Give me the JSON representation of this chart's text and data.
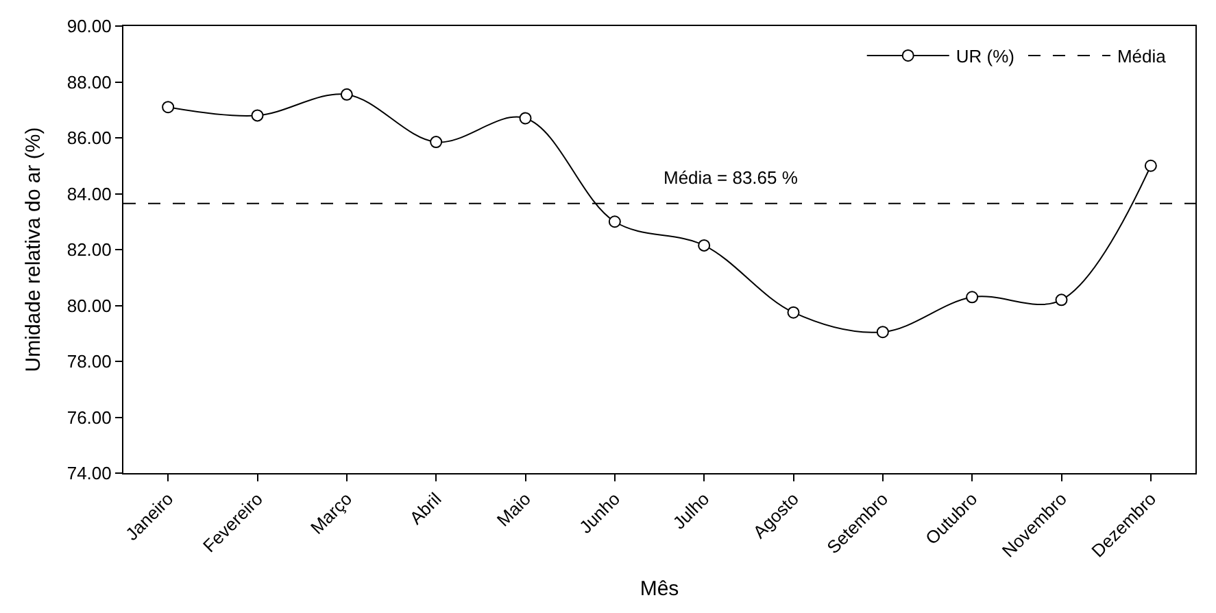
{
  "chart_data": {
    "type": "line",
    "xlabel": "Mês",
    "ylabel": "Umidade relativa do ar (%)",
    "categories": [
      "Janeiro",
      "Fevereiro",
      "Março",
      "Abril",
      "Maio",
      "Junho",
      "Julho",
      "Agosto",
      "Setembro",
      "Outubro",
      "Novembro",
      "Dezembro"
    ],
    "series": [
      {
        "name": "UR (%)",
        "color": "#000000",
        "values": [
          87.1,
          86.8,
          87.55,
          85.85,
          86.7,
          83.0,
          82.15,
          79.75,
          79.05,
          80.3,
          80.2,
          85.0
        ]
      }
    ],
    "ylim": [
      74,
      90
    ],
    "yticks": [
      {
        "value": 74,
        "label": "74.00"
      },
      {
        "value": 76,
        "label": "76.00"
      },
      {
        "value": 78,
        "label": "78.00"
      },
      {
        "value": 80,
        "label": "80.00"
      },
      {
        "value": 82,
        "label": "82.00"
      },
      {
        "value": 84,
        "label": "84.00"
      },
      {
        "value": 86,
        "label": "86.00"
      },
      {
        "value": 88,
        "label": "88.00"
      },
      {
        "value": 90,
        "label": "90.00"
      }
    ],
    "ref_lines": [
      {
        "axis": "y",
        "value": 83.65,
        "label": "Média",
        "color": "#000000",
        "line_style": "dashed"
      }
    ],
    "annotations": [
      "Média = 83.65 %"
    ],
    "marker": "circle",
    "line_style": "solid",
    "legend": "top right"
  }
}
